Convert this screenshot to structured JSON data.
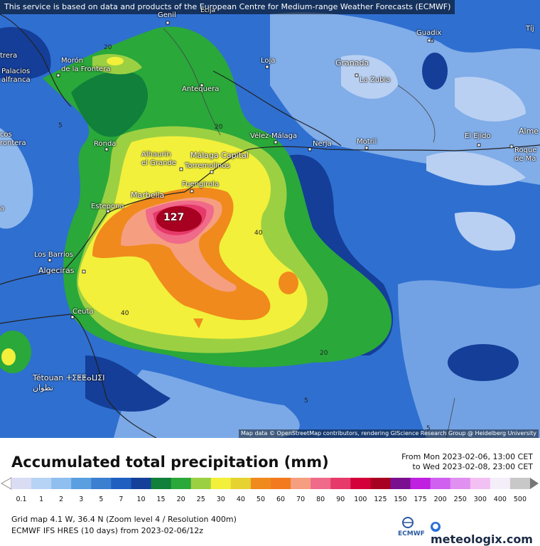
{
  "notice": "This service is based on data and products of the European Centre for Medium-range Weather Forecasts (ECMWF)",
  "attribution": "Map data © OpenStreetMap contributors, rendering GIScience Research Group @ Heidelberg University",
  "peak_value": "127",
  "places": [
    {
      "id": "genil",
      "label": "Genil"
    },
    {
      "id": "ecija",
      "label": "Ecija"
    },
    {
      "id": "guadix",
      "label": "Guadix"
    },
    {
      "id": "tij",
      "label": "Tíj"
    },
    {
      "id": "trera",
      "label": "trera"
    },
    {
      "id": "moron",
      "label": "Morón\nde la Frontera"
    },
    {
      "id": "palacios",
      "label": "Palacios\nalfranca"
    },
    {
      "id": "loja",
      "label": "Loja"
    },
    {
      "id": "granada",
      "label": "Granada"
    },
    {
      "id": "lazubia",
      "label": "La Zubia"
    },
    {
      "id": "antequera",
      "label": "Antequera"
    },
    {
      "id": "frontera",
      "label": "cos\nrontera"
    },
    {
      "id": "velez",
      "label": "Vélez-Málaga"
    },
    {
      "id": "nerja",
      "label": "Nerja"
    },
    {
      "id": "motril",
      "label": "Motril"
    },
    {
      "id": "elejido",
      "label": "El Ejido"
    },
    {
      "id": "alme",
      "label": "Alme"
    },
    {
      "id": "roque",
      "label": "Roque\nde Ma"
    },
    {
      "id": "ronda",
      "label": "Ronda"
    },
    {
      "id": "alhaurin",
      "label": "Alhaurín\nel Grande"
    },
    {
      "id": "malaga",
      "label": "Málaga Capital"
    },
    {
      "id": "torremolinos",
      "label": "Torremolinos"
    },
    {
      "id": "fuengirola",
      "label": "Fuengirola"
    },
    {
      "id": "marbella",
      "label": "Marbella"
    },
    {
      "id": "estepona",
      "label": "Estepona"
    },
    {
      "id": "losbarrios",
      "label": "Los Barrios"
    },
    {
      "id": "algeciras",
      "label": "Algeciras"
    },
    {
      "id": "ceuta",
      "label": "Ceuta"
    },
    {
      "id": "tetouan",
      "label": "Tétouan ⵜⵉⵟⵟⴰⵡⵉⵏ\nتطوان"
    },
    {
      "id": "a",
      "label": "a"
    }
  ],
  "contour_labels": [
    "20",
    "5",
    "20",
    "40",
    "40",
    "20",
    "5",
    "5",
    "5"
  ],
  "title": "Accumulated total precipitation (mm)",
  "period": {
    "from": "From Mon 2023-02-06, 13:00 CET",
    "to": "to Wed 2023-02-08, 23:00 CET"
  },
  "legend": {
    "labels": [
      "0.1",
      "1",
      "2",
      "3",
      "5",
      "7",
      "10",
      "15",
      "20",
      "25",
      "30",
      "40",
      "50",
      "60",
      "70",
      "80",
      "90",
      "100",
      "125",
      "150",
      "175",
      "200",
      "250",
      "300",
      "400",
      "500"
    ],
    "colors": [
      "#d9dcf2",
      "#b6d3f5",
      "#8fbfee",
      "#5a9fe0",
      "#3a7fd0",
      "#1e5fc0",
      "#14409a",
      "#10803a",
      "#2aa83a",
      "#9cd043",
      "#f2f03a",
      "#e6d230",
      "#f08a1c",
      "#f47a20",
      "#f59e80",
      "#f06a8a",
      "#e53a6a",
      "#d4003a",
      "#a80020",
      "#7a1090",
      "#c020e0",
      "#d060f0",
      "#e090f0",
      "#f2c0f2",
      "#f4eef8",
      "#c8c8c8"
    ]
  },
  "info": {
    "grid": "Grid map 4.1 W, 36.4 N (Zoom level 4 / Resolution 400m)",
    "model": "ECMWF IFS HRES (10 days) from 2023-02-06/12z"
  },
  "logos": {
    "ecmwf": "ECMWF",
    "brand": "meteologix.com"
  }
}
